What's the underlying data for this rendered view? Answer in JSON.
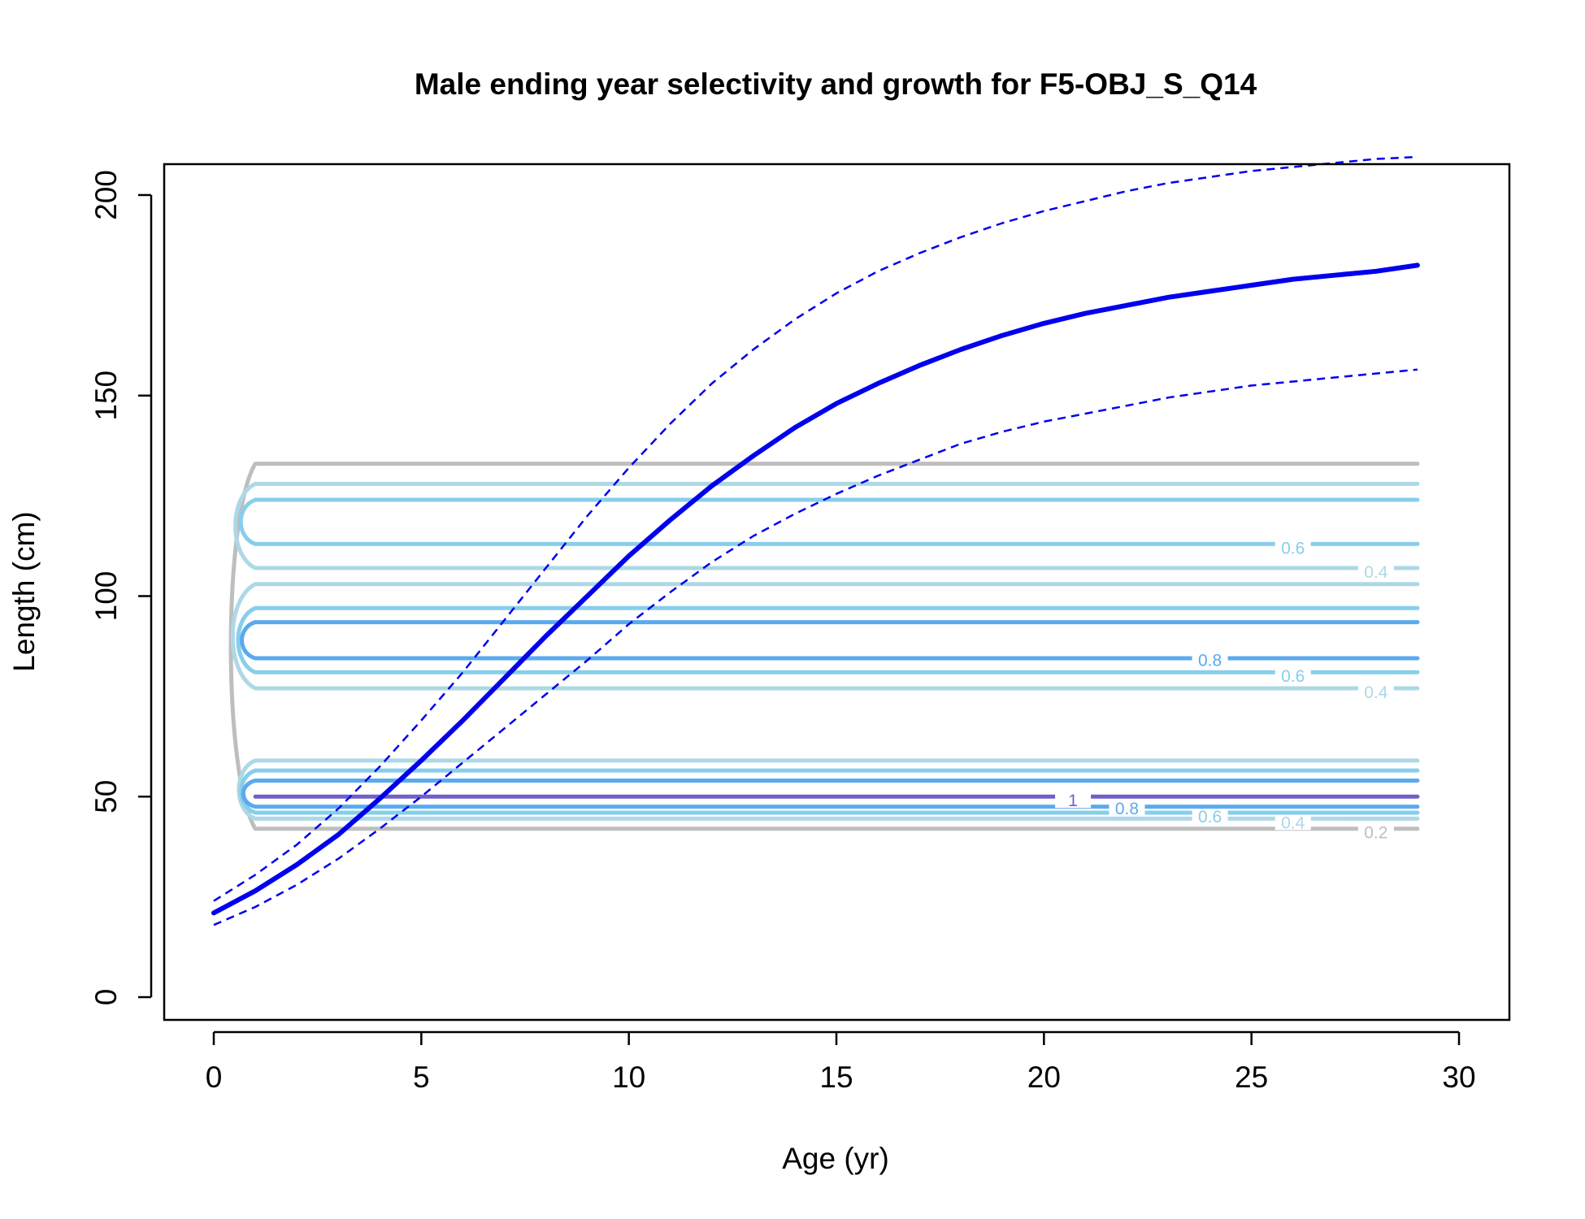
{
  "chart_data": {
    "type": "line",
    "title": "Male ending year selectivity and growth for F5-OBJ_S_Q14",
    "xlabel": "Age (yr)",
    "ylabel": "Length (cm)",
    "xlim": [
      0,
      30
    ],
    "ylim": [
      0,
      200
    ],
    "x_ticks": [
      0,
      5,
      10,
      15,
      20,
      25,
      30
    ],
    "y_ticks": [
      0,
      50,
      100,
      150,
      200
    ],
    "grid": false,
    "legend": "none",
    "series": [
      {
        "role": "mean length at age",
        "color": "#0000ee",
        "linestyle": "solid",
        "x": [
          0,
          1,
          2,
          3,
          4,
          5,
          6,
          7,
          8,
          9,
          10,
          11,
          12,
          13,
          14,
          15,
          16,
          17,
          18,
          19,
          20,
          21,
          22,
          23,
          24,
          25,
          26,
          27,
          28,
          29
        ],
        "y": [
          21,
          26.5,
          33,
          40.5,
          49.5,
          59,
          69,
          79.5,
          90,
          100,
          110,
          119,
          127.5,
          135,
          142,
          148,
          153,
          157.5,
          161.5,
          165,
          168,
          170.5,
          172.5,
          174.5,
          176,
          177.5,
          179,
          180,
          181,
          182.5
        ]
      },
      {
        "role": "upper interval",
        "color": "#0000ee",
        "linestyle": "dashed",
        "x": [
          0,
          1,
          2,
          3,
          4,
          5,
          6,
          7,
          8,
          9,
          10,
          11,
          12,
          13,
          14,
          15,
          16,
          17,
          18,
          19,
          20,
          21,
          22,
          23,
          24,
          25,
          26,
          27,
          28,
          29
        ],
        "y": [
          24,
          30.5,
          38,
          47,
          57.5,
          69,
          81,
          94,
          107,
          120,
          132,
          143,
          153,
          161.5,
          169,
          175.5,
          181,
          185.5,
          189.5,
          193,
          196,
          198.5,
          201,
          203,
          204.5,
          206,
          207,
          208,
          209,
          209.5
        ]
      },
      {
        "role": "lower interval",
        "color": "#0000ee",
        "linestyle": "dashed",
        "x": [
          0,
          1,
          2,
          3,
          4,
          5,
          6,
          7,
          8,
          9,
          10,
          11,
          12,
          13,
          14,
          15,
          16,
          17,
          18,
          19,
          20,
          21,
          22,
          23,
          24,
          25,
          26,
          27,
          28,
          29
        ],
        "y": [
          18,
          22.5,
          28,
          34.5,
          42,
          50,
          58.5,
          67,
          75.5,
          84,
          93,
          101,
          108.5,
          115,
          120.5,
          125.5,
          130,
          134,
          138,
          141,
          143.5,
          145.5,
          147.5,
          149.5,
          151,
          152.5,
          153.5,
          154.5,
          155.5,
          156.5
        ]
      }
    ],
    "contours": [
      {
        "level": "0.2",
        "color": "#bebebe",
        "lengths": [
          42,
          133
        ],
        "label_at": [
          28,
          41
        ]
      },
      {
        "level": "0.4",
        "color": "#add8e6",
        "lengths": [
          44.5,
          59,
          77,
          103,
          107,
          128
        ],
        "label_at": [
          [
            26,
            43.5
          ],
          [
            28,
            76
          ],
          [
            28,
            106
          ]
        ]
      },
      {
        "level": "0.6",
        "color": "#87ceeb",
        "lengths": [
          46,
          56.5,
          81,
          97,
          113,
          124
        ],
        "label_at": [
          [
            24,
            45
          ],
          [
            26,
            80
          ],
          [
            26,
            112
          ]
        ]
      },
      {
        "level": "0.8",
        "color": "#5aaaf0",
        "lengths": [
          47.5,
          54,
          84.5,
          93.5
        ],
        "label_at": [
          [
            22,
            47
          ],
          [
            24,
            84
          ]
        ]
      },
      {
        "level": "1",
        "color": "#7060c8",
        "lengths": [
          50
        ],
        "label_at": [
          20.7,
          49
        ]
      }
    ],
    "contour_x_range": [
      1,
      29
    ]
  }
}
